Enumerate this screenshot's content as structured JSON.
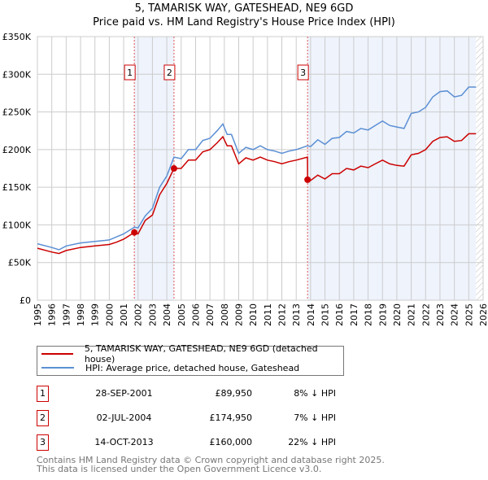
{
  "title": "5, TAMARISK WAY, GATESHEAD, NE9 6GD",
  "subtitle": "Price paid vs. HM Land Registry's House Price Index (HPI)",
  "chart_data": {
    "type": "line",
    "title": "5, TAMARISK WAY, GATESHEAD, NE9 6GD",
    "subtitle": "Price paid vs. HM Land Registry's House Price Index (HPI)",
    "xlim": [
      1995,
      2026
    ],
    "ylim": [
      0,
      350000
    ],
    "grid": true,
    "x_ticks": [
      "1995",
      "1996",
      "1997",
      "1998",
      "1999",
      "2000",
      "2001",
      "2002",
      "2003",
      "2004",
      "2005",
      "2006",
      "2007",
      "2008",
      "2009",
      "2010",
      "2011",
      "2012",
      "2013",
      "2014",
      "2015",
      "2016",
      "2017",
      "2018",
      "2019",
      "2020",
      "2021",
      "2022",
      "2023",
      "2024",
      "2025",
      "2026"
    ],
    "y_ticks": [
      {
        "v": 0,
        "label": "£0"
      },
      {
        "v": 50000,
        "label": "£50K"
      },
      {
        "v": 100000,
        "label": "£100K"
      },
      {
        "v": 150000,
        "label": "£150K"
      },
      {
        "v": 200000,
        "label": "£200K"
      },
      {
        "v": 250000,
        "label": "£250K"
      },
      {
        "v": 300000,
        "label": "£300K"
      },
      {
        "v": 350000,
        "label": "£350K"
      }
    ],
    "shaded_ranges": [
      [
        2001.74,
        2004.5
      ],
      [
        2013.79,
        2025.5
      ]
    ],
    "hatched_from": 2025.5,
    "series": [
      {
        "name": "HPI: Average price, detached house, Gateshead",
        "color": "#5b8fd4",
        "x": [
          1995,
          1996,
          1996.5,
          1997,
          1998,
          1999,
          2000,
          2000.5,
          2001,
          2001.75,
          2002,
          2002.5,
          2003,
          2003.5,
          2004,
          2004.5,
          2005,
          2005.5,
          2006,
          2006.5,
          2007,
          2007.5,
          2007.9,
          2008.2,
          2008.5,
          2009,
          2009.5,
          2010,
          2010.5,
          2011,
          2011.5,
          2012,
          2012.5,
          2013,
          2013.8,
          2014,
          2014.5,
          2015,
          2015.5,
          2016,
          2016.5,
          2017,
          2017.5,
          2018,
          2018.5,
          2019,
          2019.5,
          2020,
          2020.5,
          2021,
          2021.5,
          2022,
          2022.5,
          2023,
          2023.5,
          2024,
          2024.5,
          2025,
          2025.5
        ],
        "y": [
          75000,
          70000,
          67000,
          72000,
          76000,
          78000,
          80000,
          84000,
          88000,
          97000,
          96000,
          112000,
          122000,
          150000,
          165000,
          190000,
          188000,
          200000,
          200000,
          212000,
          215000,
          225000,
          234000,
          220000,
          220000,
          195000,
          203000,
          200000,
          205000,
          200000,
          198000,
          195000,
          198000,
          200000,
          205000,
          204000,
          213000,
          207000,
          215000,
          216000,
          224000,
          222000,
          228000,
          226000,
          232000,
          238000,
          232000,
          230000,
          228000,
          248000,
          250000,
          256000,
          270000,
          277000,
          278000,
          270000,
          272000,
          283000,
          283000
        ]
      },
      {
        "name": "5, TAMARISK WAY, GATESHEAD, NE9 6GD (detached house)",
        "color": "#cc0000",
        "x": [
          1995,
          1996,
          1996.5,
          1997,
          1998,
          1999,
          2000,
          2000.5,
          2001,
          2001.74,
          2002,
          2002.5,
          2003,
          2003.5,
          2004,
          2004.5,
          2005,
          2005.5,
          2006,
          2006.5,
          2007,
          2007.5,
          2007.9,
          2008.2,
          2008.5,
          2009,
          2009.5,
          2010,
          2010.5,
          2011,
          2011.5,
          2012,
          2012.5,
          2013,
          2013.78,
          2013.79,
          2014,
          2014.5,
          2015,
          2015.5,
          2016,
          2016.5,
          2017,
          2017.5,
          2018,
          2018.5,
          2019,
          2019.5,
          2020,
          2020.5,
          2021,
          2021.5,
          2022,
          2022.5,
          2023,
          2023.5,
          2024,
          2024.5,
          2025,
          2025.5
        ],
        "y": [
          69000,
          64000,
          62000,
          66000,
          70000,
          72000,
          74000,
          77000,
          81000,
          89950,
          88000,
          106000,
          113000,
          140000,
          155000,
          174950,
          175000,
          186000,
          186000,
          197000,
          200000,
          209000,
          217000,
          205000,
          205000,
          181000,
          189000,
          186000,
          190000,
          186000,
          184000,
          181000,
          184000,
          186000,
          190000,
          160000,
          159000,
          166000,
          161000,
          168000,
          168000,
          175000,
          173000,
          178000,
          176000,
          181000,
          186000,
          181000,
          179000,
          178000,
          193000,
          195000,
          200000,
          211000,
          216000,
          217000,
          211000,
          212000,
          221000,
          221000
        ]
      }
    ],
    "sales": [
      {
        "n": "1",
        "x": 2001.74,
        "y": 89950
      },
      {
        "n": "2",
        "x": 2004.5,
        "y": 174950
      },
      {
        "n": "3",
        "x": 2013.79,
        "y": 160000
      }
    ]
  },
  "legend": {
    "property": "5, TAMARISK WAY, GATESHEAD, NE9 6GD (detached house)",
    "hpi": "HPI: Average price, detached house, Gateshead",
    "property_color": "#cc0000",
    "hpi_color": "#5b8fd4"
  },
  "transactions": [
    {
      "n": "1",
      "date": "28-SEP-2001",
      "price": "£89,950",
      "hpi": "8% ↓ HPI"
    },
    {
      "n": "2",
      "date": "02-JUL-2004",
      "price": "£174,950",
      "hpi": "7% ↓ HPI"
    },
    {
      "n": "3",
      "date": "14-OCT-2013",
      "price": "£160,000",
      "hpi": "22% ↓ HPI"
    }
  ],
  "footer": {
    "line1": "Contains HM Land Registry data © Crown copyright and database right 2025.",
    "line2": "This data is licensed under the Open Government Licence v3.0."
  }
}
